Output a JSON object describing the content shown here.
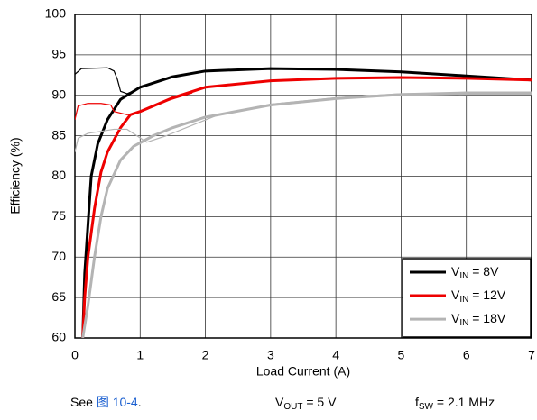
{
  "chart_data": {
    "type": "line",
    "xlabel": "Load Current (A)",
    "ylabel": "Efficiency (%)",
    "xlim": [
      0,
      7
    ],
    "xticks": [
      0,
      1,
      2,
      3,
      4,
      5,
      6,
      7
    ],
    "ylim": [
      60,
      100
    ],
    "yticks": [
      60,
      65,
      70,
      75,
      80,
      85,
      90,
      95,
      100
    ],
    "grid": true,
    "legend": "lower right",
    "series": [
      {
        "name": {
          "base": "V",
          "sub": "IN",
          "rest": " = 8V"
        },
        "color": "#000000",
        "line_width": 3,
        "x": [
          0.12,
          0.15,
          0.2,
          0.25,
          0.35,
          0.5,
          0.7,
          1,
          1.5,
          2,
          3,
          4,
          5,
          6,
          7
        ],
        "values": [
          60,
          68,
          74,
          80,
          84,
          87,
          89.5,
          91,
          92.3,
          93,
          93.3,
          93.2,
          92.9,
          92.4,
          91.9
        ]
      },
      {
        "name": {
          "base": "V",
          "sub": "IN",
          "rest": " = 12V"
        },
        "color": "#ee0000",
        "line_width": 3,
        "x": [
          0.12,
          0.15,
          0.2,
          0.3,
          0.4,
          0.5,
          0.7,
          0.85,
          1,
          1.5,
          2,
          3,
          4,
          5,
          6,
          7
        ],
        "values": [
          60,
          65,
          70,
          76,
          80.5,
          83,
          86,
          87.6,
          88,
          89.7,
          91,
          91.8,
          92.1,
          92.2,
          92.1,
          91.9
        ]
      },
      {
        "name": {
          "base": "V",
          "sub": "IN",
          "rest": " = 18V"
        },
        "color": "#b4b4b4",
        "line_width": 3,
        "x": [
          0.12,
          0.2,
          0.3,
          0.4,
          0.5,
          0.7,
          0.9,
          1.2,
          1.5,
          2,
          3,
          4,
          5,
          6,
          7
        ],
        "values": [
          60,
          64,
          70,
          75,
          78.5,
          82,
          83.7,
          85,
          86,
          87.3,
          88.8,
          89.6,
          90.1,
          90.2,
          90.2
        ]
      },
      {
        "color": "#000000",
        "line_width": 1.2,
        "x": [
          0,
          0.1,
          0.5,
          0.6,
          0.65,
          0.7,
          0.8,
          1,
          1.2
        ],
        "values": [
          92.6,
          93.3,
          93.4,
          93,
          92,
          90.5,
          90.2,
          90.9,
          91.6
        ]
      },
      {
        "color": "#ee0000",
        "line_width": 1.2,
        "x": [
          0,
          0.05,
          0.2,
          0.4,
          0.55,
          0.6,
          0.8,
          1,
          1.4,
          1.8
        ],
        "values": [
          87,
          88.7,
          89,
          89,
          88.8,
          88,
          87.6,
          87.9,
          89.3,
          90.3
        ]
      },
      {
        "color": "#b4b4b4",
        "line_width": 1.2,
        "x": [
          0,
          0.05,
          0.2,
          0.6,
          0.8,
          0.95,
          1.1,
          1.4,
          1.8,
          2.2,
          3,
          4,
          5,
          6,
          7
        ],
        "values": [
          83,
          84.7,
          85.3,
          85.8,
          85.8,
          85,
          84.2,
          85,
          86.3,
          87.6,
          88.9,
          89.7,
          90.2,
          90.4,
          90.4
        ]
      }
    ],
    "caption": {
      "see": "See ",
      "link": "图 10-4",
      "end": ".",
      "vout": {
        "base": "V",
        "sub": "OUT",
        "rest": " = 5 V"
      },
      "fsw": {
        "base": "f",
        "sub": "SW",
        "rest": " = 2.1 MHz"
      }
    }
  }
}
